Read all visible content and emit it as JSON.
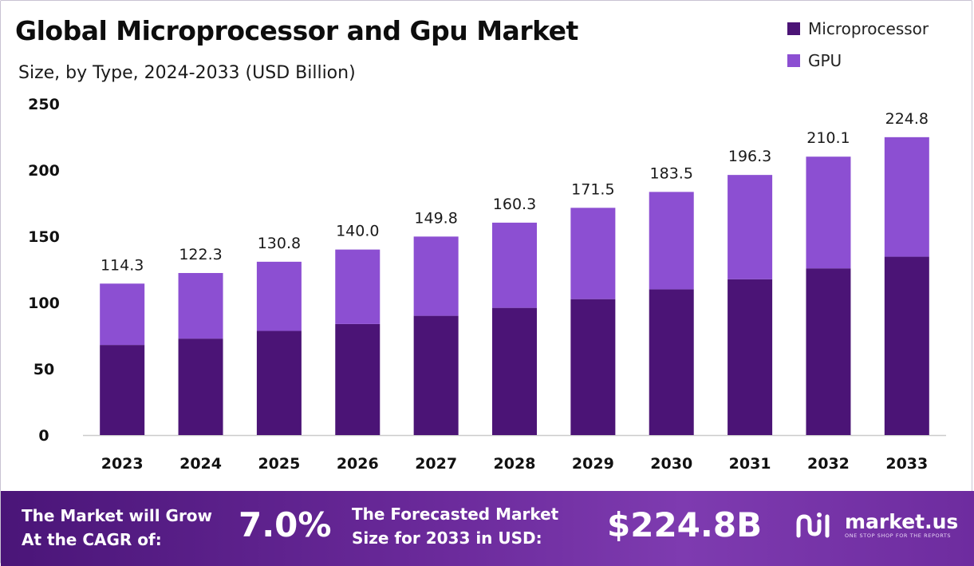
{
  "title": "Global Microprocessor and Gpu Market",
  "subtitle": "Size, by Type, 2024-2033 (USD Billion)",
  "colors": {
    "microprocessor": "#4b1476",
    "gpu": "#8c4fd2",
    "axis": "#cccccc",
    "label": "#111111"
  },
  "legend": [
    {
      "label": "Microprocessor",
      "color": "#4b1476"
    },
    {
      "label": "GPU",
      "color": "#8c4fd2"
    }
  ],
  "chart_data": {
    "type": "bar",
    "stacked": true,
    "categories": [
      "2023",
      "2024",
      "2025",
      "2026",
      "2027",
      "2028",
      "2029",
      "2030",
      "2031",
      "2032",
      "2033"
    ],
    "series": [
      {
        "name": "Microprocessor",
        "values": [
          68.0,
          72.8,
          78.6,
          83.8,
          90.0,
          96.0,
          102.6,
          110.0,
          117.6,
          125.8,
          134.6
        ]
      },
      {
        "name": "GPU",
        "values": [
          46.3,
          49.5,
          52.2,
          56.2,
          59.8,
          64.3,
          68.9,
          73.5,
          78.7,
          84.3,
          90.2
        ]
      }
    ],
    "totals": [
      "114.3",
      "122.3",
      "130.8",
      "140.0",
      "149.8",
      "160.3",
      "171.5",
      "183.5",
      "196.3",
      "210.1",
      "224.8"
    ],
    "yticks": [
      "0",
      "50",
      "100",
      "150",
      "200",
      "250"
    ],
    "ylim": [
      0,
      250
    ],
    "grid": false,
    "legend_position": "top-right"
  },
  "footer": {
    "cagr_text_line1": "The Market will Grow",
    "cagr_text_line2": "At the CAGR of:",
    "cagr_value": "7.0%",
    "forecast_text_line1": "The Forecasted Market",
    "forecast_text_line2": "Size for 2033 in USD:",
    "forecast_value": "$224.8B",
    "brand_name": "market.us",
    "brand_tagline": "ONE STOP SHOP FOR THE REPORTS",
    "brand_icon": "market-us-logo-icon"
  }
}
